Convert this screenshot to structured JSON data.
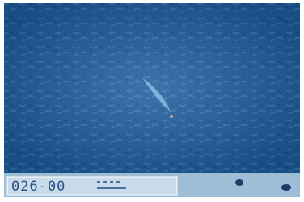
{
  "display": {
    "readout": "026-00"
  }
}
